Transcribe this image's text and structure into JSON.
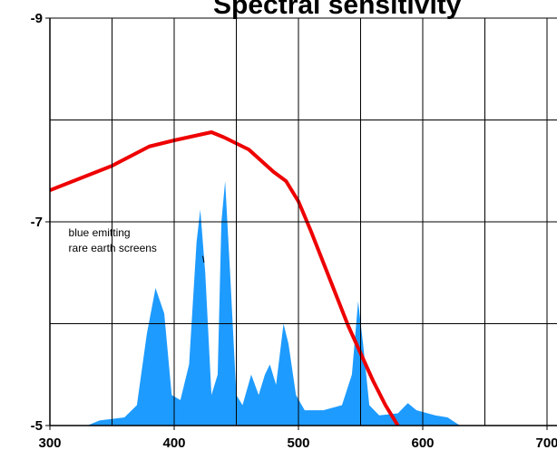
{
  "chart_data": {
    "type": "line",
    "title": "Spectral sensitivity",
    "xlim": [
      300,
      700
    ],
    "xticks": [
      300,
      400,
      500,
      600,
      700
    ],
    "xgrid": [
      300,
      350,
      400,
      450,
      500,
      550,
      600,
      650,
      700
    ],
    "ylim": [
      -5,
      -9
    ],
    "yticks": [
      -9,
      -7,
      -5
    ],
    "ygrid": [
      -9,
      -8,
      -7,
      -6,
      -5
    ],
    "grid": true,
    "annotation": {
      "lines": [
        "blue emitting",
        "rare earth screens"
      ],
      "x": 315,
      "y": -6.86,
      "arrow_to": [
        424,
        -6.6
      ]
    },
    "series": [
      {
        "type": "area",
        "color": "#1e9bff",
        "x": [
          330,
          340,
          360,
          370,
          378,
          385,
          392,
          398,
          405,
          412,
          418,
          421,
          425,
          430,
          435,
          438,
          441,
          445,
          450,
          455,
          462,
          468,
          473,
          477,
          482,
          488,
          492,
          498,
          505,
          520,
          535,
          543,
          548,
          552,
          557,
          565,
          580,
          588,
          595,
          610,
          620,
          630
        ],
        "values": [
          -5.0,
          -5.05,
          -5.08,
          -5.2,
          -5.9,
          -6.35,
          -6.1,
          -5.3,
          -5.25,
          -5.6,
          -6.8,
          -7.12,
          -6.5,
          -5.3,
          -5.5,
          -7.0,
          -7.4,
          -6.5,
          -5.3,
          -5.2,
          -5.5,
          -5.3,
          -5.5,
          -5.6,
          -5.4,
          -6.0,
          -5.8,
          -5.3,
          -5.15,
          -5.15,
          -5.2,
          -5.5,
          -6.22,
          -5.8,
          -5.2,
          -5.1,
          -5.12,
          -5.22,
          -5.15,
          -5.1,
          -5.08,
          -5.0
        ]
      },
      {
        "type": "line",
        "color": "#ee0000",
        "x": [
          300,
          350,
          380,
          400,
          430,
          440,
          460,
          480,
          490,
          500,
          510,
          520,
          530,
          540,
          550,
          560,
          570,
          580
        ],
        "values": [
          -7.31,
          -7.55,
          -7.74,
          -7.8,
          -7.88,
          -7.83,
          -7.71,
          -7.49,
          -7.4,
          -7.2,
          -6.91,
          -6.6,
          -6.29,
          -5.98,
          -5.71,
          -5.44,
          -5.2,
          -5.0
        ]
      }
    ]
  }
}
